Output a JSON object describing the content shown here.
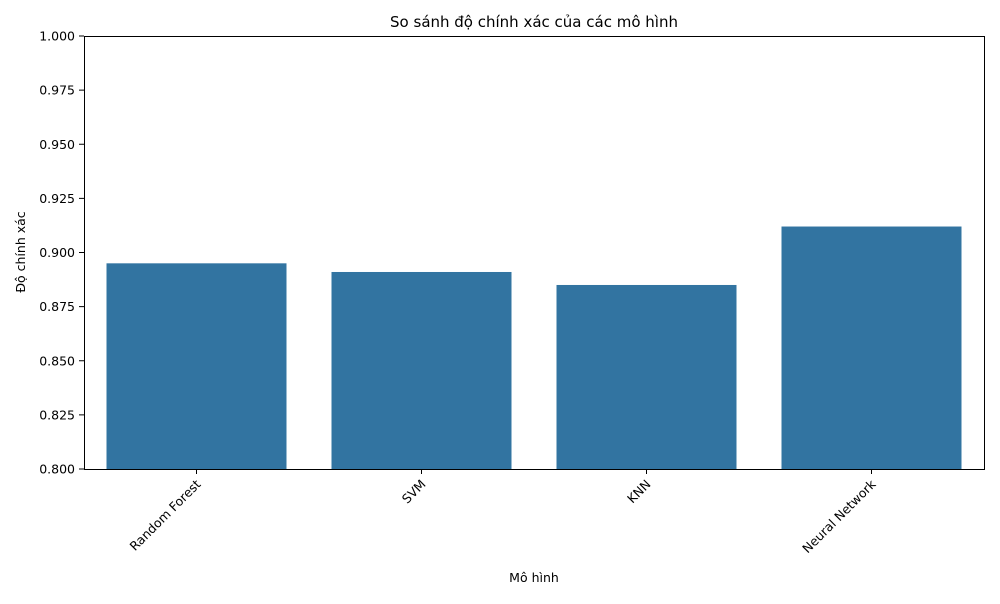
{
  "chart_data": {
    "type": "bar",
    "title": "So sánh độ chính xác của các mô hình",
    "xlabel": "Mô hình",
    "ylabel": "Độ chính xác",
    "categories": [
      "Random Forest",
      "SVM",
      "KNN",
      "Neural Network"
    ],
    "values": [
      0.895,
      0.891,
      0.885,
      0.912
    ],
    "ylim": [
      0.8,
      1.0
    ],
    "yticks": [
      "0.800",
      "0.825",
      "0.850",
      "0.875",
      "0.900",
      "0.925",
      "0.950",
      "0.975",
      "1.000"
    ],
    "xtick_rotation": 45,
    "grid": false,
    "legend": false,
    "colors": {
      "bar": "#3274a1",
      "axis": "#000000"
    }
  }
}
